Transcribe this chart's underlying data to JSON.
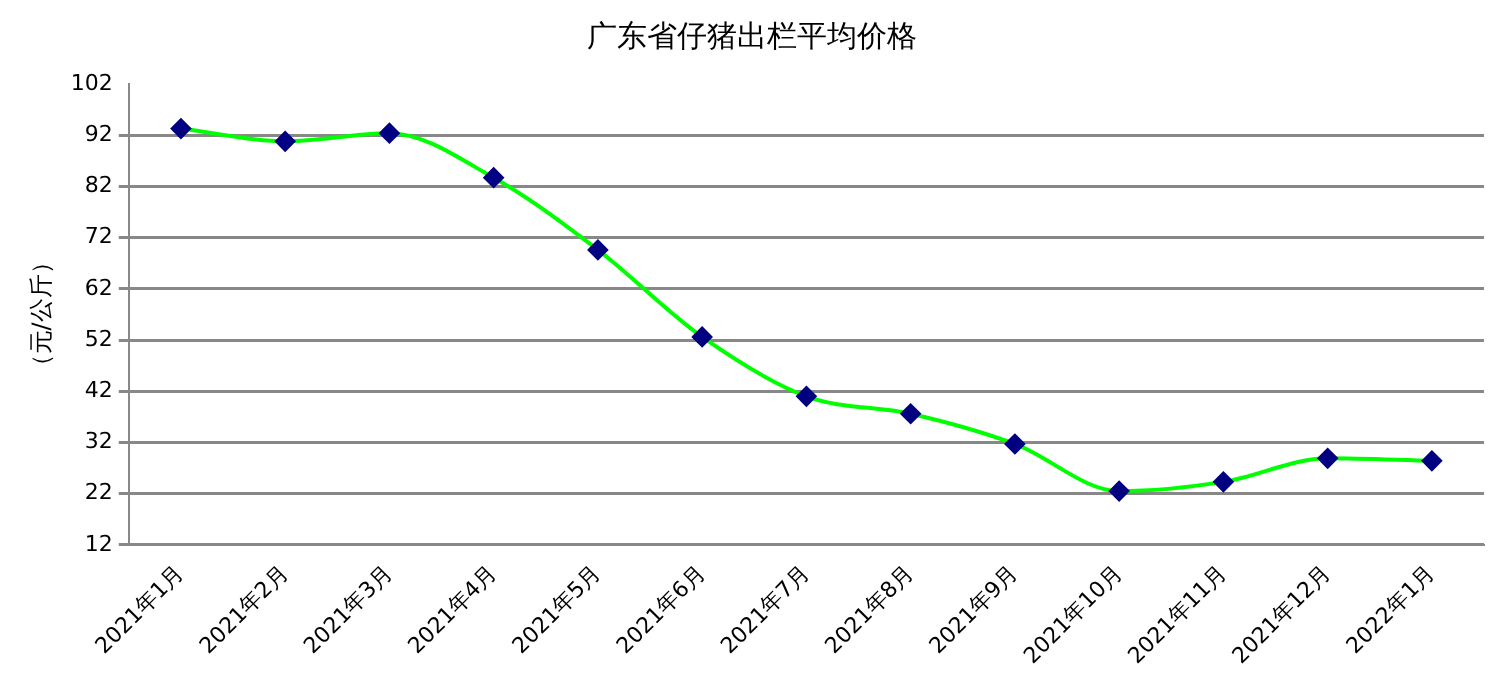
{
  "chart_data": {
    "type": "line",
    "title": "广东省仔猪出栏平均价格",
    "ylabel": "（元/公斤）",
    "categories": [
      "2021年1月",
      "2021年2月",
      "2021年3月",
      "2021年4月",
      "2021年5月",
      "2021年6月",
      "2021年7月",
      "2021年8月",
      "2021年9月",
      "2021年10月",
      "2021年11月",
      "2021年12月",
      "2022年1月"
    ],
    "series": [
      {
        "color": "#00ff00",
        "values": [
          93.3,
          90.8,
          92.4,
          83.7,
          69.6,
          52.6,
          41.0,
          37.6,
          31.7,
          22.5,
          24.3,
          28.9,
          28.4
        ]
      }
    ],
    "ylim": [
      12,
      102
    ],
    "yticks": [
      12,
      22,
      32,
      42,
      52,
      62,
      72,
      82,
      92,
      102
    ],
    "grid": "y",
    "legend": false,
    "marker": "diamond",
    "line_style": "solid"
  }
}
